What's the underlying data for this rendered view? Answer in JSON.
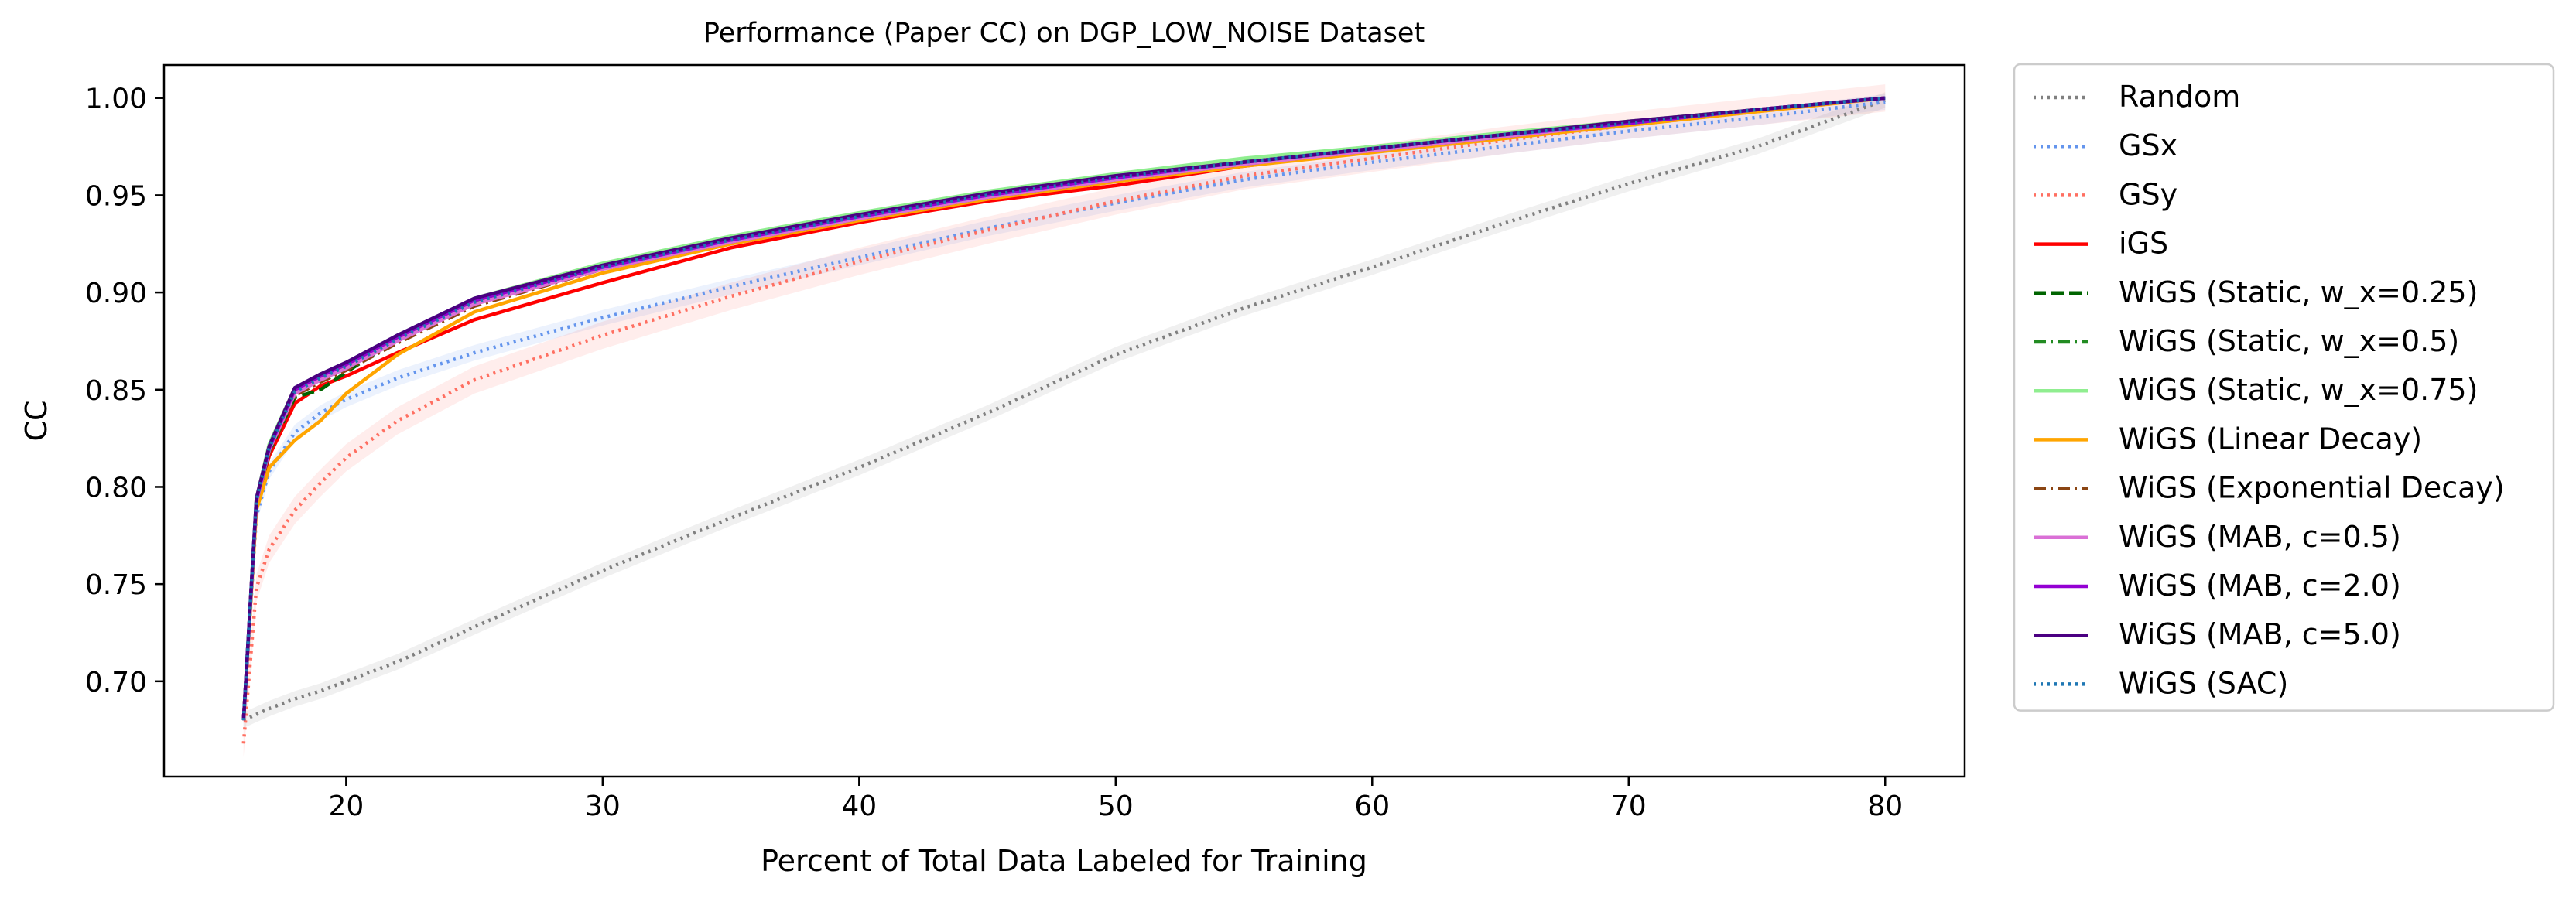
{
  "chart_data": {
    "type": "line",
    "title": "Performance (Paper CC) on DGP_LOW_NOISE Dataset",
    "xlabel": "Percent of Total Data Labeled for Training",
    "ylabel": "CC",
    "xlim": [
      12.9,
      83.1
    ],
    "ylim": [
      0.651,
      1.017
    ],
    "xticks": [
      20,
      30,
      40,
      50,
      60,
      70,
      80
    ],
    "xtick_labels": [
      "20",
      "30",
      "40",
      "50",
      "60",
      "70",
      "80"
    ],
    "yticks": [
      0.7,
      0.75,
      0.8,
      0.85,
      0.9,
      0.95,
      1.0
    ],
    "ytick_labels": [
      "0.70",
      "0.75",
      "0.80",
      "0.85",
      "0.90",
      "0.95",
      "1.00"
    ],
    "grid": false,
    "legend_position": "outside-right",
    "x": [
      16,
      16.5,
      17,
      18,
      19,
      20,
      22,
      25,
      30,
      35,
      40,
      45,
      50,
      55,
      60,
      65,
      70,
      75,
      80
    ],
    "series": [
      {
        "name": "Random",
        "color": "#808080",
        "style": "dotted",
        "band": 0.004,
        "values": [
          0.68,
          0.683,
          0.686,
          0.691,
          0.695,
          0.7,
          0.71,
          0.728,
          0.757,
          0.784,
          0.81,
          0.838,
          0.868,
          0.892,
          0.913,
          0.935,
          0.956,
          0.975,
          0.999
        ]
      },
      {
        "name": "GSx",
        "color": "#6495ed",
        "style": "dotted",
        "band": 0.004,
        "values": [
          0.68,
          0.785,
          0.808,
          0.828,
          0.838,
          0.845,
          0.856,
          0.869,
          0.887,
          0.903,
          0.918,
          0.933,
          0.946,
          0.958,
          0.967,
          0.975,
          0.983,
          0.99,
          0.998
        ]
      },
      {
        "name": "GSy",
        "color": "#ff6f61",
        "style": "dotted",
        "band": 0.007,
        "values": [
          0.668,
          0.748,
          0.768,
          0.788,
          0.802,
          0.815,
          0.834,
          0.855,
          0.878,
          0.898,
          0.916,
          0.932,
          0.947,
          0.96,
          0.969,
          0.978,
          0.986,
          0.993,
          1.0
        ]
      },
      {
        "name": "iGS",
        "color": "#ff0000",
        "style": "solid",
        "values": [
          0.68,
          0.792,
          0.816,
          0.843,
          0.852,
          0.857,
          0.869,
          0.886,
          0.905,
          0.923,
          0.936,
          0.947,
          0.955,
          0.965,
          0.973,
          0.98,
          0.987,
          0.994,
          1.0
        ]
      },
      {
        "name": "WiGS (Static, w_x=0.25)",
        "color": "#006400",
        "style": "dashed",
        "values": [
          0.68,
          0.792,
          0.818,
          0.846,
          0.85,
          0.859,
          0.876,
          0.895,
          0.913,
          0.927,
          0.939,
          0.95,
          0.959,
          0.967,
          0.974,
          0.981,
          0.987,
          0.994,
          1.0
        ]
      },
      {
        "name": "WiGS (Static, w_x=0.5)",
        "color": "#228b22",
        "style": "dashdot",
        "values": [
          0.68,
          0.793,
          0.82,
          0.849,
          0.856,
          0.862,
          0.877,
          0.896,
          0.914,
          0.928,
          0.94,
          0.951,
          0.96,
          0.968,
          0.975,
          0.981,
          0.988,
          0.994,
          1.0
        ]
      },
      {
        "name": "WiGS (Static, w_x=0.75)",
        "color": "#90ee90",
        "style": "solid",
        "values": [
          0.68,
          0.794,
          0.822,
          0.851,
          0.858,
          0.864,
          0.878,
          0.897,
          0.915,
          0.929,
          0.941,
          0.952,
          0.961,
          0.969,
          0.975,
          0.982,
          0.988,
          0.994,
          1.0
        ]
      },
      {
        "name": "WiGS (Linear Decay)",
        "color": "#ffa500",
        "style": "solid",
        "values": [
          0.68,
          0.788,
          0.81,
          0.824,
          0.834,
          0.848,
          0.868,
          0.89,
          0.91,
          0.925,
          0.937,
          0.948,
          0.957,
          0.965,
          0.972,
          0.979,
          0.986,
          0.993,
          1.0
        ]
      },
      {
        "name": "WiGS (Exponential Decay)",
        "color": "#8b4513",
        "style": "dashdot",
        "values": [
          0.68,
          0.792,
          0.818,
          0.847,
          0.854,
          0.86,
          0.874,
          0.893,
          0.912,
          0.926,
          0.938,
          0.949,
          0.958,
          0.966,
          0.973,
          0.98,
          0.987,
          0.994,
          1.0
        ]
      },
      {
        "name": "WiGS (MAB, c=0.5)",
        "color": "#da70d6",
        "style": "solid",
        "values": [
          0.68,
          0.792,
          0.819,
          0.848,
          0.855,
          0.861,
          0.875,
          0.894,
          0.912,
          0.926,
          0.938,
          0.949,
          0.958,
          0.966,
          0.973,
          0.98,
          0.987,
          0.994,
          1.0
        ]
      },
      {
        "name": "WiGS (MAB, c=2.0)",
        "color": "#9400d3",
        "style": "solid",
        "values": [
          0.68,
          0.793,
          0.82,
          0.85,
          0.857,
          0.863,
          0.877,
          0.896,
          0.913,
          0.927,
          0.939,
          0.95,
          0.959,
          0.967,
          0.974,
          0.981,
          0.987,
          0.994,
          1.0
        ]
      },
      {
        "name": "WiGS (MAB, c=5.0)",
        "color": "#4b0082",
        "style": "solid",
        "values": [
          0.68,
          0.794,
          0.821,
          0.851,
          0.858,
          0.864,
          0.878,
          0.897,
          0.914,
          0.928,
          0.94,
          0.951,
          0.96,
          0.967,
          0.974,
          0.981,
          0.988,
          0.994,
          1.0
        ]
      },
      {
        "name": "WiGS (SAC)",
        "color": "#1f77b4",
        "style": "dotted",
        "values": [
          0.68,
          0.793,
          0.82,
          0.849,
          0.856,
          0.862,
          0.876,
          0.895,
          0.913,
          0.927,
          0.939,
          0.95,
          0.959,
          0.967,
          0.974,
          0.981,
          0.987,
          0.994,
          1.0
        ]
      }
    ]
  }
}
